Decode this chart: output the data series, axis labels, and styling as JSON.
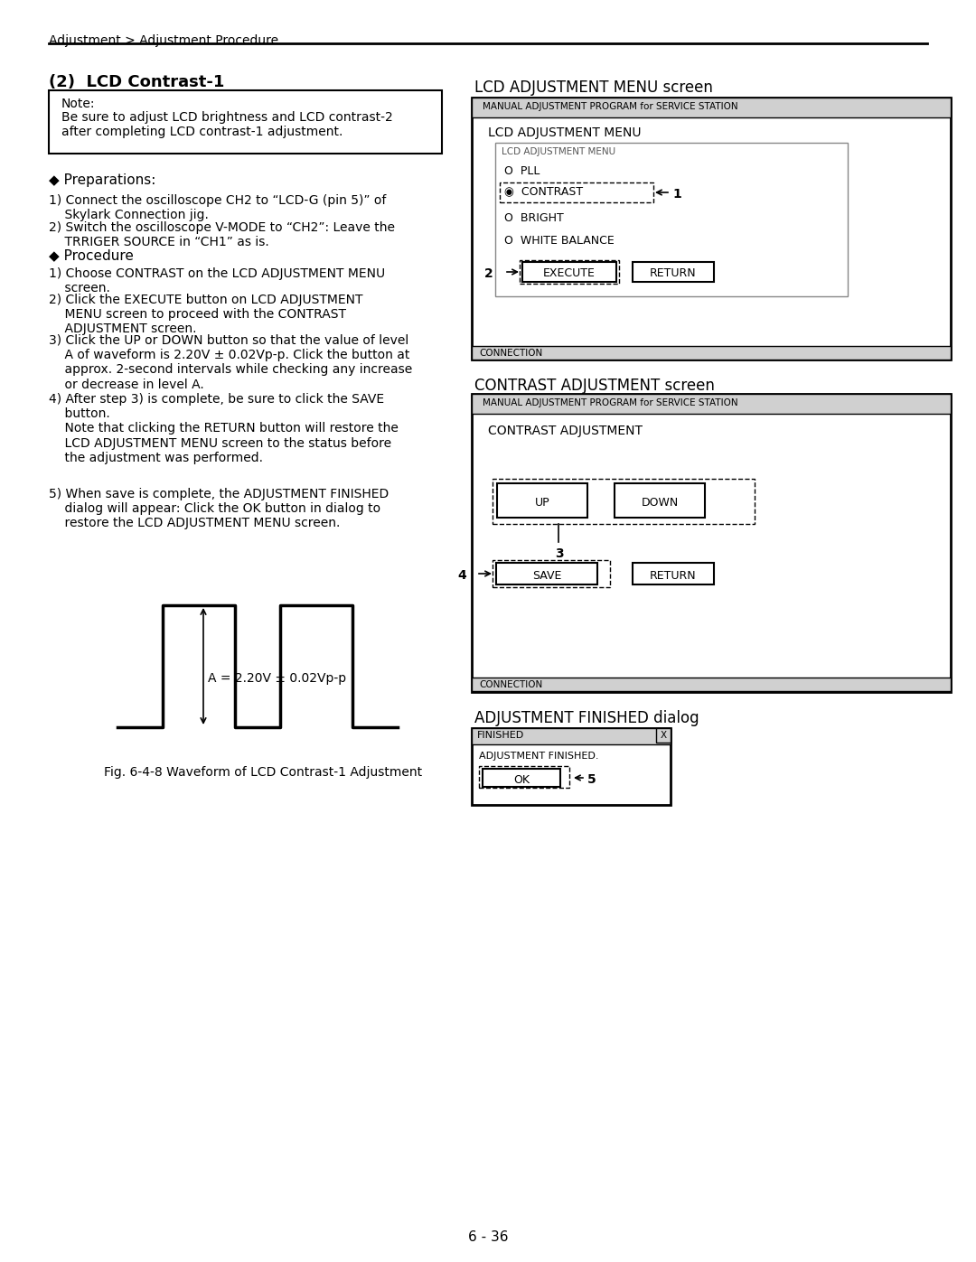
{
  "page_title": "Adjustment > Adjustment Procedure",
  "section_title": "(2)  LCD Contrast-1",
  "note_title": "Note:",
  "note_text": "Be sure to adjust LCD brightness and LCD contrast-2\nafter completing LCD contrast-1 adjustment.",
  "preparations_title": "◆ Preparations:",
  "prep_items": [
    "1) Connect the oscilloscope CH2 to “LCD-G (pin 5)” of\n    Skylark Connection jig.",
    "2) Switch the oscilloscope V-MODE to “CH2”: Leave the\n    TRRIGER SOURCE in “CH1” as is."
  ],
  "procedure_title": "◆ Procedure",
  "proc_items": [
    "1) Choose CONTRAST on the LCD ADJUSTMENT MENU\n    screen.",
    "2) Click the EXECUTE button on LCD ADJUSTMENT\n    MENU screen to proceed with the CONTRAST\n    ADJUSTMENT screen.",
    "3) Click the UP or DOWN button so that the value of level\n    A of waveform is 2.20V ± 0.02Vp-p. Click the button at\n    approx. 2-second intervals while checking any increase\n    or decrease in level A.",
    "4) After step 3) is complete, be sure to click the SAVE\n    button.\n    Note that clicking the RETURN button will restore the\n    LCD ADJUSTMENT MENU screen to the status before\n    the adjustment was performed.",
    "5) When save is complete, the ADJUSTMENT FINISHED\n    dialog will appear: Click the OK button in dialog to\n    restore the LCD ADJUSTMENT MENU screen."
  ],
  "waveform_label": "A = 2.20V ± 0.02Vp-p",
  "fig_caption": "Fig. 6-4-8 Waveform of LCD Contrast-1 Adjustment",
  "page_number": "6 - 36",
  "lcd_menu_title": "LCD ADJUSTMENT MENU screen",
  "lcd_menu_bar": "MANUAL ADJUSTMENT PROGRAM for SERVICE STATION",
  "lcd_menu_inner": "LCD ADJUSTMENT MENU",
  "lcd_menu_frame": "LCD ADJUSTMENT MENU",
  "lcd_items": [
    "O  PLL",
    "◉  CONTRAST",
    "O  BRIGHT",
    "O  WHITE BALANCE"
  ],
  "lcd_buttons": [
    "EXECUTE",
    "RETURN"
  ],
  "lcd_connection": "CONNECTION",
  "contrast_title": "CONTRAST ADJUSTMENT screen",
  "contrast_bar": "MANUAL ADJUSTMENT PROGRAM for SERVICE STATION",
  "contrast_inner": "CONTRAST ADJUSTMENT",
  "contrast_buttons": [
    "UP",
    "DOWN"
  ],
  "contrast_save_buttons": [
    "SAVE",
    "RETURN"
  ],
  "contrast_connection": "CONNECTION",
  "finished_title": "ADJUSTMENT FINISHED dialog",
  "finished_bar": "FINISHED",
  "finished_text": "ADJUSTMENT FINISHED.",
  "finished_ok": "OK",
  "bg_color": "#ffffff",
  "text_color": "#000000",
  "gray_bar": "#d0d0d0"
}
